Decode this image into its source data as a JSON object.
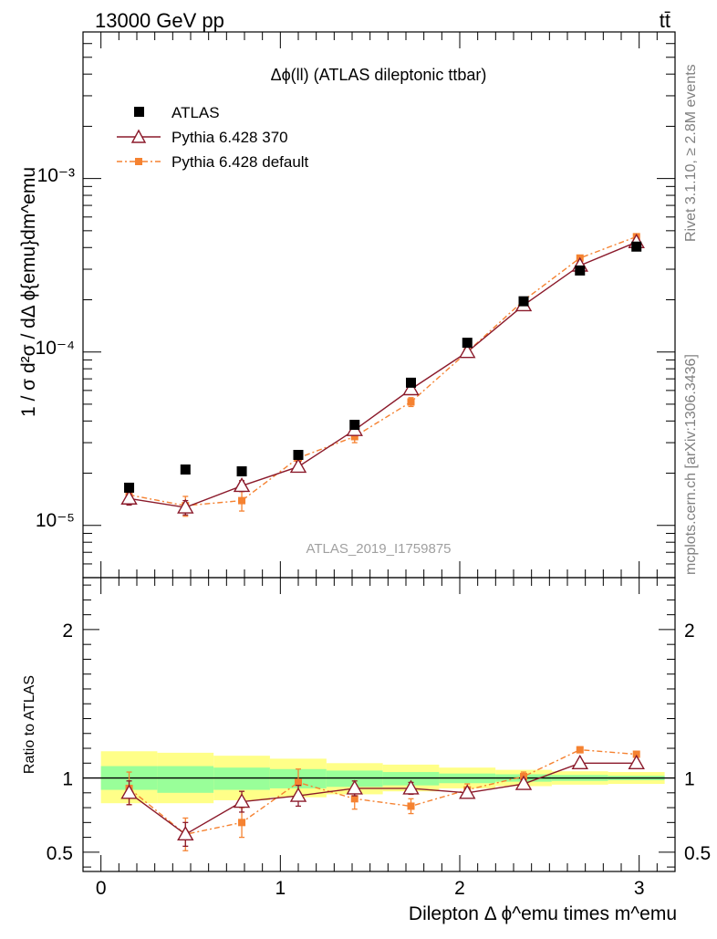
{
  "header": {
    "left": "13000 GeV pp",
    "right": "tt̄",
    "plot_title": "Δϕ(ll) (ATLAS dileptonic ttbar)",
    "analysis_id": "ATLAS_2019_I1759875",
    "side_rivet": "Rivet 3.1.10, ≥ 2.8M events",
    "side_mcplots": "mcplots.cern.ch [arXiv:1306.3436]"
  },
  "colors": {
    "data": "#000000",
    "pythia370": "#8b1a2b",
    "pythia_default": "#f58231",
    "band_inner": "#99ff99",
    "band_outer": "#ffff88"
  },
  "chart_data": [
    {
      "type": "scatter",
      "panel": "main",
      "ylabel": "1 / σ  d²σ / dΔ ϕ{emu}dm^emu",
      "y_scale": "log",
      "xlim": [
        -0.1,
        3.2
      ],
      "ylim": [
        5e-06,
        0.007
      ],
      "y_tick_labels": [
        "10⁻⁵",
        "10⁻⁴",
        "10⁻³"
      ],
      "legend_position": "top-left",
      "x": [
        0.157,
        0.471,
        0.785,
        1.1,
        1.414,
        1.728,
        2.042,
        2.356,
        2.67,
        2.985
      ],
      "series": [
        {
          "name": "ATLAS",
          "style": "marker-square",
          "values": [
            1.65e-05,
            2.1e-05,
            2.05e-05,
            2.55e-05,
            3.8e-05,
            6.65e-05,
            0.000113,
            0.000196,
            0.000295,
            0.000405
          ]
        },
        {
          "name": "Pythia 6.428 370",
          "style": "line-triangle",
          "values": [
            1.43e-05,
            1.27e-05,
            1.69e-05,
            2.18e-05,
            3.55e-05,
            6.1e-05,
            0.0001,
            0.000186,
            0.000315,
            0.00043
          ],
          "errors": [
            1.2e-06,
            1.2e-06,
            1.2e-06,
            1.5e-06,
            2e-06,
            3e-06,
            4e-06,
            6e-06,
            8e-06,
            1e-05
          ]
        },
        {
          "name": "Pythia 6.428 default",
          "style": "dashdot-square",
          "values": [
            1.5e-05,
            1.3e-05,
            1.39e-05,
            2.45e-05,
            3.25e-05,
            5.15e-05,
            0.0001,
            0.000198,
            0.000348,
            0.000462
          ],
          "errors": [
            1.8e-06,
            1.7e-06,
            1.8e-06,
            2.2e-06,
            2.5e-06,
            3e-06,
            5e-06,
            8e-06,
            1e-05,
            1.2e-05
          ]
        }
      ]
    },
    {
      "type": "scatter",
      "panel": "ratio",
      "ylabel": "Ratio to ATLAS",
      "xlabel": "Dilepton Δ ϕ^emu times m^emu",
      "xlim": [
        -0.1,
        3.2
      ],
      "ylim": [
        0.37,
        2.35
      ],
      "y_ticks": [
        0.5,
        1,
        2
      ],
      "x_ticks": [
        0,
        1,
        2,
        3
      ],
      "reference": 1,
      "x": [
        0.157,
        0.471,
        0.785,
        1.1,
        1.414,
        1.728,
        2.042,
        2.356,
        2.67,
        2.985
      ],
      "bin_edges": [
        0,
        0.314,
        0.628,
        0.942,
        1.257,
        1.571,
        1.885,
        2.199,
        2.513,
        2.827,
        3.142
      ],
      "band_inner": {
        "lo": [
          0.92,
          0.9,
          0.92,
          0.93,
          0.94,
          0.95,
          0.965,
          0.975,
          0.98,
          0.985
        ],
        "hi": [
          1.08,
          1.08,
          1.07,
          1.06,
          1.05,
          1.04,
          1.03,
          1.025,
          1.02,
          1.015
        ]
      },
      "band_outer": {
        "lo": [
          0.83,
          0.83,
          0.85,
          0.87,
          0.89,
          0.91,
          0.93,
          0.945,
          0.955,
          0.96
        ],
        "hi": [
          1.18,
          1.17,
          1.15,
          1.13,
          1.1,
          1.09,
          1.07,
          1.055,
          1.045,
          1.04
        ]
      },
      "series": [
        {
          "name": "Pythia 6.428 370",
          "style": "line-triangle",
          "values": [
            0.9,
            0.62,
            0.84,
            0.88,
            0.93,
            0.93,
            0.9,
            0.96,
            1.1,
            1.1
          ],
          "errors": [
            0.08,
            0.08,
            0.07,
            0.07,
            0.05,
            0.04,
            0.03,
            0.03,
            0.02,
            0.02
          ]
        },
        {
          "name": "Pythia 6.428 default",
          "style": "dashdot-square",
          "values": [
            0.93,
            0.62,
            0.7,
            0.97,
            0.86,
            0.81,
            0.92,
            1.01,
            1.19,
            1.16
          ],
          "errors": [
            0.11,
            0.11,
            0.1,
            0.09,
            0.07,
            0.05,
            0.04,
            0.03,
            0.02,
            0.02
          ]
        }
      ]
    }
  ]
}
